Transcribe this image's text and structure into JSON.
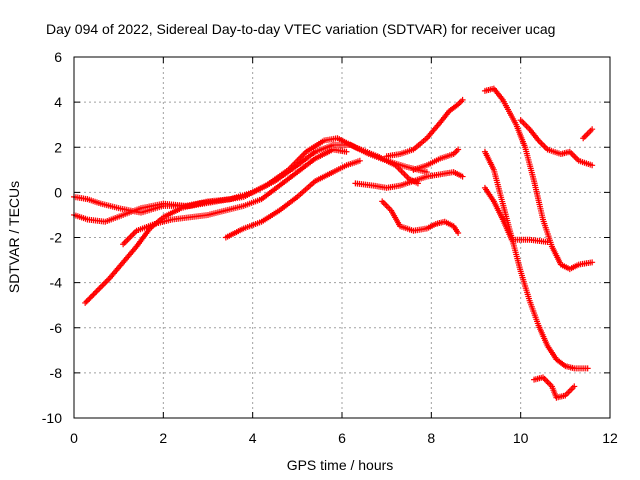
{
  "chart_data": {
    "type": "scatter",
    "title": "Day 094 of 2022, Sidereal Day-to-day VTEC variation (SDTVAR) for receiver ucag",
    "xlabel": "GPS time / hours",
    "ylabel": "SDTVAR / TECUs",
    "xlim": [
      0,
      12
    ],
    "ylim": [
      -10,
      6
    ],
    "xticks": [
      0,
      2,
      4,
      6,
      8,
      10,
      12
    ],
    "yticks": [
      -10,
      -8,
      -6,
      -4,
      -2,
      0,
      2,
      4,
      6
    ],
    "grid": true,
    "marker": "+",
    "color": "#ff0000",
    "series": [
      {
        "name": "s1",
        "points": [
          [
            0.0,
            -0.2
          ],
          [
            0.3,
            -0.3
          ],
          [
            0.6,
            -0.5
          ],
          [
            1.0,
            -0.7
          ],
          [
            1.5,
            -0.9
          ],
          [
            2.0,
            -0.6
          ],
          [
            2.6,
            -0.6
          ],
          [
            3.2,
            -0.4
          ],
          [
            3.8,
            -0.2
          ],
          [
            4.3,
            0.3
          ],
          [
            4.8,
            1.0
          ],
          [
            5.2,
            1.8
          ],
          [
            5.6,
            2.3
          ],
          [
            5.9,
            2.4
          ],
          [
            6.3,
            2.0
          ],
          [
            6.8,
            1.6
          ],
          [
            7.2,
            1.2
          ],
          [
            7.5,
            0.6
          ],
          [
            7.7,
            0.4
          ]
        ]
      },
      {
        "name": "s2",
        "points": [
          [
            0.0,
            -1.0
          ],
          [
            0.3,
            -1.2
          ],
          [
            0.7,
            -1.3
          ],
          [
            1.1,
            -1.0
          ],
          [
            1.5,
            -0.7
          ],
          [
            2.0,
            -0.5
          ],
          [
            2.5,
            -0.6
          ],
          [
            3.0,
            -0.4
          ],
          [
            3.5,
            -0.3
          ],
          [
            4.0,
            0.0
          ],
          [
            4.5,
            0.5
          ],
          [
            5.0,
            1.2
          ],
          [
            5.4,
            1.8
          ],
          [
            5.8,
            2.1
          ],
          [
            6.2,
            2.1
          ],
          [
            6.6,
            1.7
          ],
          [
            7.0,
            1.4
          ],
          [
            7.5,
            1.1
          ],
          [
            7.9,
            0.9
          ]
        ]
      },
      {
        "name": "s3",
        "points": [
          [
            0.25,
            -4.9
          ],
          [
            0.5,
            -4.4
          ],
          [
            0.8,
            -3.8
          ],
          [
            1.1,
            -3.1
          ],
          [
            1.4,
            -2.4
          ],
          [
            1.7,
            -1.6
          ],
          [
            2.0,
            -1.1
          ],
          [
            2.4,
            -0.7
          ],
          [
            2.8,
            -0.5
          ],
          [
            3.1,
            -0.4
          ]
        ]
      },
      {
        "name": "s4",
        "points": [
          [
            1.1,
            -2.3
          ],
          [
            1.4,
            -1.7
          ],
          [
            1.8,
            -1.4
          ],
          [
            2.2,
            -1.2
          ],
          [
            2.6,
            -1.1
          ],
          [
            3.0,
            -1.0
          ],
          [
            3.4,
            -0.8
          ],
          [
            3.8,
            -0.6
          ],
          [
            4.2,
            -0.3
          ],
          [
            4.6,
            0.3
          ],
          [
            5.0,
            0.9
          ],
          [
            5.4,
            1.5
          ],
          [
            5.8,
            1.9
          ],
          [
            6.1,
            1.8
          ]
        ]
      },
      {
        "name": "s5",
        "points": [
          [
            3.4,
            -2.0
          ],
          [
            3.8,
            -1.6
          ],
          [
            4.2,
            -1.3
          ],
          [
            4.6,
            -0.8
          ],
          [
            5.0,
            -0.2
          ],
          [
            5.4,
            0.5
          ],
          [
            5.8,
            0.9
          ],
          [
            6.1,
            1.2
          ],
          [
            6.4,
            1.4
          ]
        ]
      },
      {
        "name": "s6",
        "points": [
          [
            6.3,
            0.4
          ],
          [
            6.7,
            0.3
          ],
          [
            7.0,
            0.2
          ],
          [
            7.3,
            0.3
          ],
          [
            7.6,
            0.5
          ],
          [
            7.9,
            0.7
          ],
          [
            8.2,
            0.8
          ],
          [
            8.5,
            0.9
          ],
          [
            8.7,
            0.7
          ]
        ]
      },
      {
        "name": "s7",
        "points": [
          [
            7.0,
            1.6
          ],
          [
            7.3,
            1.7
          ],
          [
            7.6,
            1.9
          ],
          [
            7.9,
            2.4
          ],
          [
            8.2,
            3.1
          ],
          [
            8.4,
            3.6
          ],
          [
            8.6,
            3.9
          ],
          [
            8.7,
            4.1
          ]
        ]
      },
      {
        "name": "s8",
        "points": [
          [
            7.6,
            1.0
          ],
          [
            7.9,
            1.2
          ],
          [
            8.2,
            1.5
          ],
          [
            8.5,
            1.7
          ],
          [
            8.6,
            1.9
          ]
        ]
      },
      {
        "name": "s9",
        "points": [
          [
            6.9,
            -0.4
          ],
          [
            7.1,
            -0.8
          ],
          [
            7.3,
            -1.5
          ],
          [
            7.6,
            -1.7
          ],
          [
            7.9,
            -1.6
          ],
          [
            8.1,
            -1.4
          ],
          [
            8.3,
            -1.3
          ],
          [
            8.5,
            -1.5
          ],
          [
            8.6,
            -1.8
          ]
        ]
      },
      {
        "name": "s10",
        "points": [
          [
            9.2,
            4.5
          ],
          [
            9.4,
            4.6
          ],
          [
            9.6,
            4.1
          ],
          [
            9.9,
            3.0
          ],
          [
            10.1,
            2.0
          ],
          [
            10.3,
            0.5
          ],
          [
            10.5,
            -1.2
          ],
          [
            10.7,
            -2.4
          ],
          [
            10.9,
            -3.2
          ],
          [
            11.1,
            -3.4
          ],
          [
            11.3,
            -3.2
          ],
          [
            11.6,
            -3.1
          ]
        ]
      },
      {
        "name": "s11",
        "points": [
          [
            9.2,
            1.8
          ],
          [
            9.4,
            1.0
          ],
          [
            9.6,
            -0.5
          ],
          [
            9.8,
            -2.0
          ],
          [
            10.0,
            -3.5
          ],
          [
            10.2,
            -4.8
          ],
          [
            10.4,
            -5.9
          ],
          [
            10.6,
            -6.8
          ],
          [
            10.8,
            -7.4
          ],
          [
            11.0,
            -7.7
          ],
          [
            11.2,
            -7.8
          ],
          [
            11.5,
            -7.8
          ]
        ]
      },
      {
        "name": "s12",
        "points": [
          [
            9.2,
            0.2
          ],
          [
            9.4,
            -0.4
          ],
          [
            9.6,
            -1.2
          ],
          [
            9.8,
            -2.1
          ],
          [
            10.2,
            -2.1
          ],
          [
            10.6,
            -2.2
          ]
        ]
      },
      {
        "name": "s13",
        "points": [
          [
            10.0,
            3.2
          ],
          [
            10.2,
            2.8
          ],
          [
            10.4,
            2.3
          ],
          [
            10.6,
            1.9
          ],
          [
            10.9,
            1.7
          ],
          [
            11.1,
            1.8
          ],
          [
            11.3,
            1.4
          ],
          [
            11.6,
            1.2
          ]
        ]
      },
      {
        "name": "s14",
        "points": [
          [
            10.3,
            -8.3
          ],
          [
            10.5,
            -8.2
          ],
          [
            10.7,
            -8.6
          ],
          [
            10.8,
            -9.1
          ],
          [
            11.0,
            -9.0
          ],
          [
            11.2,
            -8.6
          ]
        ]
      },
      {
        "name": "s15",
        "points": [
          [
            11.4,
            2.4
          ],
          [
            11.6,
            2.8
          ]
        ]
      }
    ]
  }
}
